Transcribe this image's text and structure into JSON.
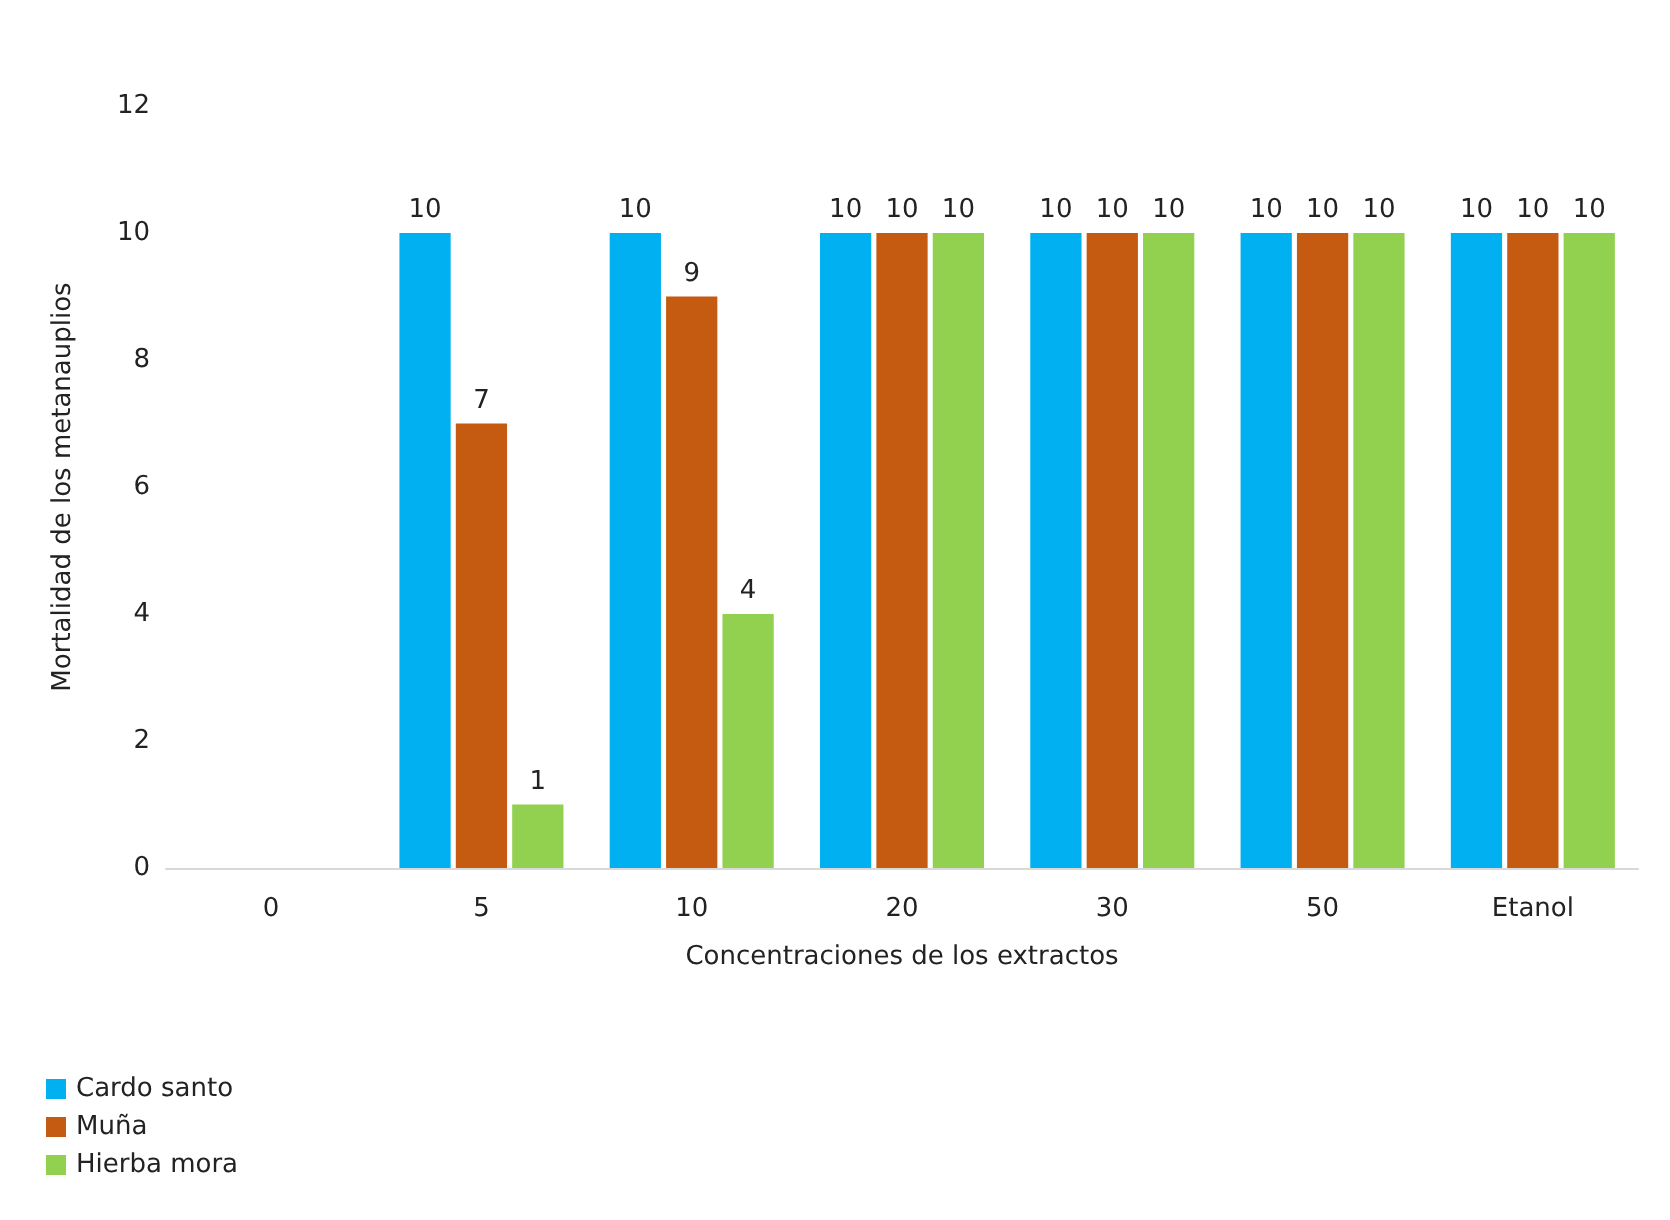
{
  "chart_data": {
    "type": "bar",
    "xlabel": "Concentraciones de los extractos",
    "ylabel": "Mortalidad de los metanauplios",
    "categories": [
      "0",
      "5",
      "10",
      "20",
      "30",
      "50",
      "Etanol"
    ],
    "series": [
      {
        "name": "Cardo santo",
        "color": "#00b0f0",
        "values": [
          0,
          10,
          10,
          10,
          10,
          10,
          10
        ],
        "value_labels": [
          null,
          "10",
          "10",
          "10",
          "10",
          "10",
          "10"
        ]
      },
      {
        "name": "Muña",
        "color": "#c55a11",
        "values": [
          0,
          7,
          9,
          10,
          10,
          10,
          10
        ],
        "value_labels": [
          null,
          "7",
          "9",
          "10",
          "10",
          "10",
          "10"
        ]
      },
      {
        "name": "Hierba mora",
        "color": "#92d050",
        "values": [
          0,
          1,
          4,
          10,
          10,
          10,
          10
        ],
        "value_labels": [
          null,
          "1",
          "4",
          "10",
          "10",
          "10",
          "10"
        ]
      }
    ],
    "ylim": [
      0,
      12
    ],
    "yticks": [
      0,
      2,
      4,
      6,
      8,
      10,
      12
    ],
    "grid": false,
    "legend": "bottom left"
  }
}
